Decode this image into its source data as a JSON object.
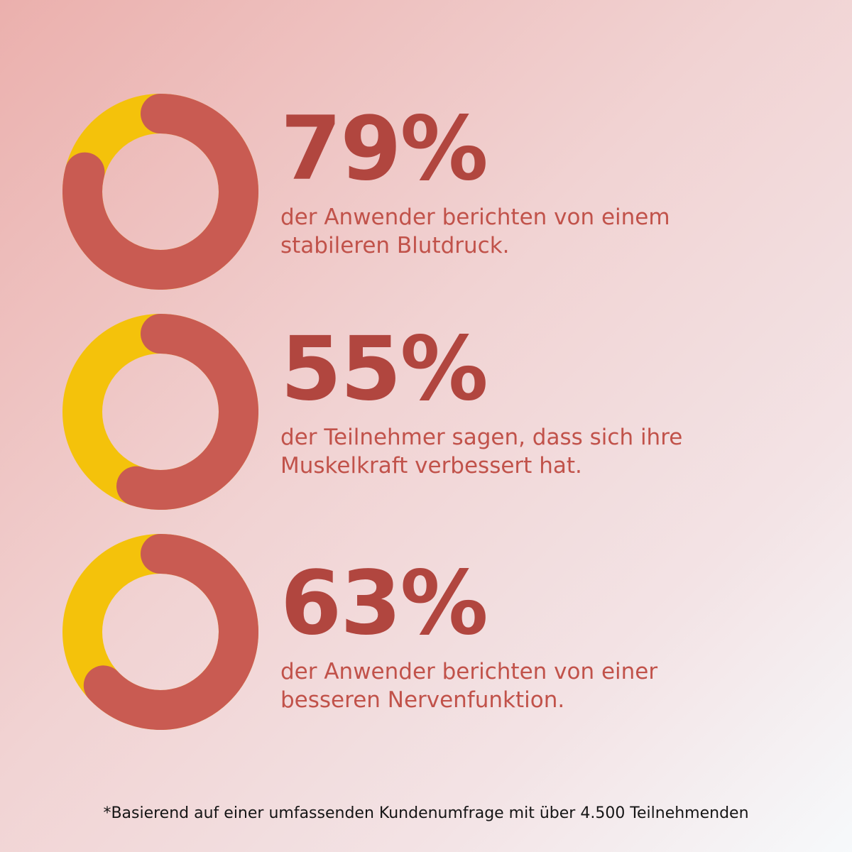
{
  "colors": {
    "accent": "#c95b52",
    "remainder": "#f4c20b",
    "value_text": "#b1463f",
    "desc_text": "#c1524a"
  },
  "stats": [
    {
      "value_label": "79%",
      "description": "der Anwender berichten von einem\nstabileren Blutdruck."
    },
    {
      "value_label": "55%",
      "description": "der Teilnehmer sagen, dass sich ihre\nMuskelkraft verbessert hat."
    },
    {
      "value_label": "63%",
      "description": "der Anwender berichten von einer\nbesseren Nervenfunktion."
    }
  ],
  "chart_data": [
    {
      "type": "pie",
      "style": "donut",
      "values": [
        79,
        21
      ]
    },
    {
      "type": "pie",
      "style": "donut",
      "values": [
        55,
        45
      ]
    },
    {
      "type": "pie",
      "style": "donut",
      "values": [
        63,
        37
      ]
    }
  ],
  "footnote": "*Basierend auf einer umfassenden Kundenumfrage mit über 4.500 Teilnehmenden"
}
